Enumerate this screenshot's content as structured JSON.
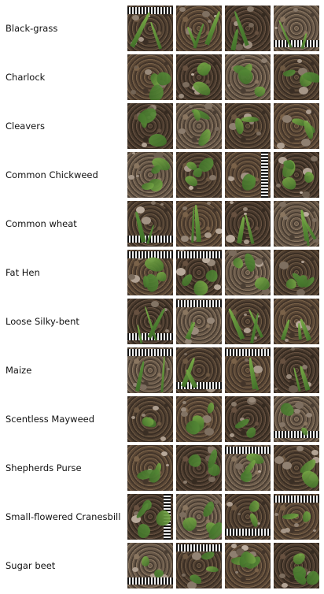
{
  "species": [
    "Black-grass",
    "Charlock",
    "Cleavers",
    "Common Chickweed",
    "Common wheat",
    "Fat Hen",
    "Loose Silky-bent",
    "Maize",
    "Scentless Mayweed",
    "Shepherds Purse",
    "Small-flowered Cranesbill",
    "Sugar beet"
  ],
  "tile_icon": "plant-seedling-photo",
  "colors": {
    "soil_dark": "#4a3a2c",
    "soil_mid": "#6b5540",
    "plant_green": "#5a8f3a",
    "plant_light": "#7fb04a"
  }
}
